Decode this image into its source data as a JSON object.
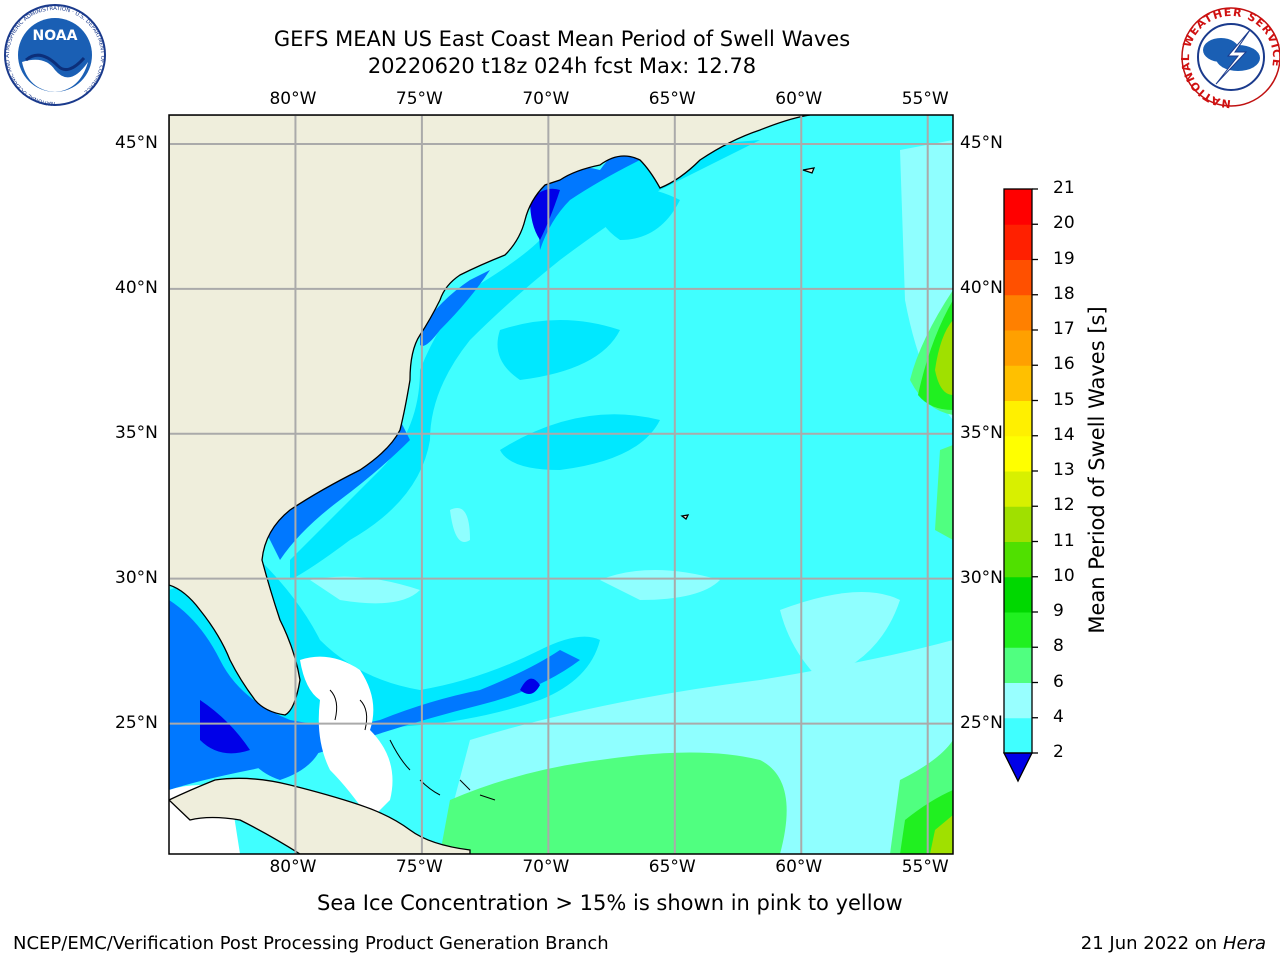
{
  "header": {
    "title_line1": "GEFS MEAN US East Coast Mean Period of Swell Waves",
    "title_line2": "20220620 t18z 024h fcst   Max: 12.78"
  },
  "map": {
    "lon_labels": [
      "80°W",
      "75°W",
      "70°W",
      "65°W",
      "60°W",
      "55°W"
    ],
    "lat_labels": [
      "45°N",
      "40°N",
      "35°N",
      "30°N",
      "25°N"
    ],
    "lon_range": [
      -85,
      -54
    ],
    "lat_range": [
      20.5,
      46
    ],
    "colors": {
      "land": "#efeedc",
      "grid": "#aaaaaa",
      "coast": "#000000"
    }
  },
  "colorbar": {
    "title": "Mean Period of Swell Waves [s]",
    "tick_labels": [
      "21",
      "20",
      "19",
      "18",
      "17",
      "16",
      "15",
      "14",
      "13",
      "12",
      "11",
      "10",
      "9",
      "8",
      "6",
      "4",
      "2"
    ],
    "colors": [
      "#0000e8",
      "#0078ff",
      "#00e8ff",
      "#40ffff",
      "#98ffff",
      "#50ff80",
      "#20f020",
      "#00d800",
      "#50e000",
      "#a0e000",
      "#d8f000",
      "#ffff00",
      "#fff000",
      "#ffc000",
      "#ffa000",
      "#ff8000",
      "#ff5000",
      "#ff2000",
      "#ff0000"
    ]
  },
  "footer": {
    "note": "Sea Ice Concentration > 15% is shown in pink to yellow",
    "left": "NCEP/EMC/Verification Post Processing Product Generation Branch",
    "date": "21 Jun 2022 on",
    "machine": "Hera"
  },
  "logos": {
    "noaa_text": "NOAA",
    "noaa_ring": "NATIONAL OCEANIC AND ATMOSPHERIC ADMINISTRATION · U.S. DEPARTMENT OF COMMERCE",
    "nws_ring": "NATIONAL WEATHER SERVICE"
  }
}
